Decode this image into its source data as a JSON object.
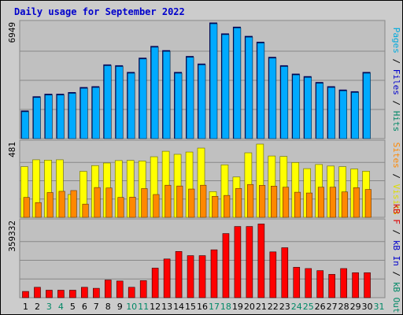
{
  "chart_data": {
    "type": "bar",
    "title": "Daily usage for September 2022",
    "x_labels": [
      "1",
      "2",
      "3",
      "4",
      "5",
      "6",
      "7",
      "8",
      "9",
      "10",
      "11",
      "12",
      "13",
      "14",
      "15",
      "16",
      "17",
      "18",
      "19",
      "20",
      "21",
      "22",
      "23",
      "24",
      "25",
      "26",
      "27",
      "28",
      "29",
      "30",
      "31"
    ],
    "weekend_days": [
      3,
      4,
      10,
      11,
      17,
      18,
      24,
      25,
      31
    ],
    "panels": [
      {
        "id": "hits",
        "ymax_label": "6949",
        "ymax": 6949,
        "right_label_parts": [
          {
            "text": "Pages",
            "color": "#00aadd"
          },
          {
            "text": " / ",
            "color": "#000000"
          },
          {
            "text": "Files",
            "color": "#0000cc"
          },
          {
            "text": " / ",
            "color": "#000000"
          },
          {
            "text": "Hits",
            "color": "#008866"
          }
        ],
        "series": [
          {
            "name": "Hits",
            "color": "#00aaff",
            "values": [
              1600,
              2450,
              2600,
              2600,
              2700,
              3000,
              3050,
              4350,
              4300,
              3900,
              4750,
              5450,
              5200,
              3900,
              4850,
              4400,
              6850,
              6200,
              6600,
              6050,
              5700,
              4800,
              4300,
              3800,
              3650,
              3300,
              3050,
              2850,
              2750,
              3900,
              0
            ]
          },
          {
            "name": "Files",
            "color": "#0000cc",
            "values": [
              1600,
              2450,
              2600,
              2600,
              2700,
              3000,
              3050,
              4350,
              4300,
              3900,
              4750,
              5450,
              5200,
              3900,
              4850,
              4400,
              6850,
              6200,
              6600,
              6050,
              5700,
              4800,
              4300,
              3800,
              3650,
              3300,
              3050,
              2850,
              2750,
              3900,
              0
            ]
          }
        ]
      },
      {
        "id": "visits",
        "ymax_label": "481",
        "ymax": 481,
        "right_label_parts": [
          {
            "text": "Sites",
            "color": "#ff8800"
          },
          {
            "text": " / ",
            "color": "#000000"
          },
          {
            "text": "Visits",
            "color": "#dddd00"
          }
        ],
        "series": [
          {
            "name": "Visits",
            "color": "#ffff00",
            "values": [
              333,
              378,
              376,
              378,
              150,
              302,
              340,
              357,
              373,
              374,
              370,
              398,
              434,
              414,
              429,
              455,
              169,
              345,
              265,
              424,
              481,
              403,
              400,
              360,
              320,
              347,
              337,
              333,
              318,
              303,
              0
            ]
          },
          {
            "name": "Sites",
            "color": "#ff8800",
            "values": [
              131,
              97,
              163,
              171,
              176,
              87,
              196,
              193,
              131,
              133,
              189,
              150,
              211,
              206,
              186,
              211,
              138,
              144,
              190,
              216,
              210,
              205,
              198,
              165,
              160,
              198,
              198,
              167,
              195,
              183,
              0
            ]
          }
        ]
      },
      {
        "id": "kb",
        "ymax_label": "359332",
        "ymax": 359332,
        "right_label_parts": [
          {
            "text": "kB F",
            "color": "#dd0000"
          },
          {
            "text": " / ",
            "color": "#000000"
          },
          {
            "text": "kB In",
            "color": "#0000cc"
          },
          {
            "text": " / ",
            "color": "#000000"
          },
          {
            "text": "kB Out",
            "color": "#008866"
          }
        ],
        "series": [
          {
            "name": "kB F",
            "color": "#ff0000",
            "values": [
              30000,
              50000,
              36000,
              36000,
              36000,
              50000,
              45000,
              85000,
              80000,
              50000,
              82000,
              142000,
              186000,
              222000,
              202000,
              202000,
              230000,
              308000,
              342000,
              342000,
              354000,
              220000,
              240000,
              146000,
              140000,
              130000,
              112000,
              140000,
              120000,
              120000,
              0
            ]
          }
        ]
      }
    ]
  }
}
